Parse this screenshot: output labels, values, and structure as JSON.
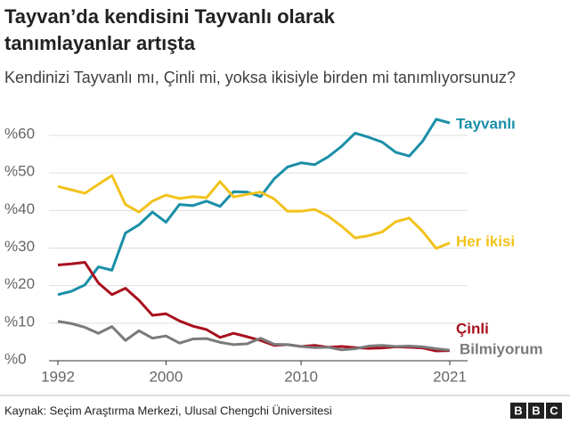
{
  "chart_data": {
    "type": "line",
    "title": [
      "Tayvan’da kendisini Tayvanlı olarak",
      "tanımlayanlar artışta"
    ],
    "subtitle": "Kendinizi Tayvanlı mı, Çinli mi, yoksa ikisiyle birden mi tanımlıyorsunuz?",
    "x": [
      1992,
      1993,
      1994,
      1995,
      1996,
      1997,
      1998,
      1999,
      2000,
      2001,
      2002,
      2003,
      2004,
      2005,
      2006,
      2007,
      2008,
      2009,
      2010,
      2011,
      2012,
      2013,
      2014,
      2015,
      2016,
      2017,
      2018,
      2019,
      2020,
      2021
    ],
    "xlim": [
      1992,
      2021
    ],
    "xticks": [
      1992,
      2000,
      2010,
      2021
    ],
    "ylim": [
      0,
      60
    ],
    "yticks": [
      {
        "value": 0,
        "label": "%0"
      },
      {
        "value": 10,
        "label": "%10"
      },
      {
        "value": 20,
        "label": "%20"
      },
      {
        "value": 30,
        "label": "%30"
      },
      {
        "value": 40,
        "label": "%40"
      },
      {
        "value": 50,
        "label": "%50"
      },
      {
        "value": 60,
        "label": "%60"
      }
    ],
    "grid": true,
    "series": [
      {
        "name": "Tayvanlı",
        "color": "#1a8fa8",
        "values": [
          17.6,
          18.5,
          20.2,
          25.0,
          24.1,
          34.0,
          36.2,
          39.6,
          36.9,
          41.6,
          41.3,
          42.5,
          41.1,
          45.0,
          44.9,
          43.7,
          48.4,
          51.6,
          52.7,
          52.2,
          54.3,
          57.1,
          60.6,
          59.5,
          58.2,
          55.5,
          54.5,
          58.5,
          64.3,
          63.3
        ]
      },
      {
        "name": "Her ikisi",
        "color": "#f2c21b",
        "values": [
          46.4,
          45.5,
          44.6,
          47.0,
          49.3,
          41.6,
          39.6,
          42.5,
          44.1,
          43.2,
          43.7,
          43.4,
          47.7,
          43.6,
          44.3,
          44.9,
          43.1,
          39.8,
          39.8,
          40.3,
          38.5,
          35.8,
          32.7,
          33.3,
          34.3,
          37.0,
          38.0,
          34.4,
          29.9,
          31.4
        ]
      },
      {
        "name": "Çinli",
        "color": "#a8101e",
        "values": [
          25.5,
          25.8,
          26.2,
          20.7,
          17.6,
          19.3,
          16.1,
          12.1,
          12.5,
          10.6,
          9.2,
          8.3,
          6.2,
          7.3,
          6.4,
          5.4,
          4.1,
          4.3,
          3.8,
          4.1,
          3.6,
          3.8,
          3.5,
          3.3,
          3.4,
          3.7,
          3.6,
          3.4,
          2.6,
          2.7
        ]
      },
      {
        "name": "Bilmiyorum",
        "color": "#7a7a7a",
        "values": [
          10.5,
          9.9,
          8.9,
          7.3,
          9.1,
          5.4,
          8.0,
          6.0,
          6.6,
          4.7,
          5.8,
          5.9,
          4.9,
          4.3,
          4.5,
          6.0,
          4.4,
          4.3,
          3.8,
          3.5,
          3.6,
          2.9,
          3.2,
          3.9,
          4.1,
          3.8,
          3.9,
          3.7,
          3.2,
          2.8
        ]
      }
    ],
    "source": "Kaynak: Seçim Araştırma Merkezi, Ulusal Chengchi Üniversitesi",
    "logo": [
      "B",
      "B",
      "C"
    ]
  }
}
